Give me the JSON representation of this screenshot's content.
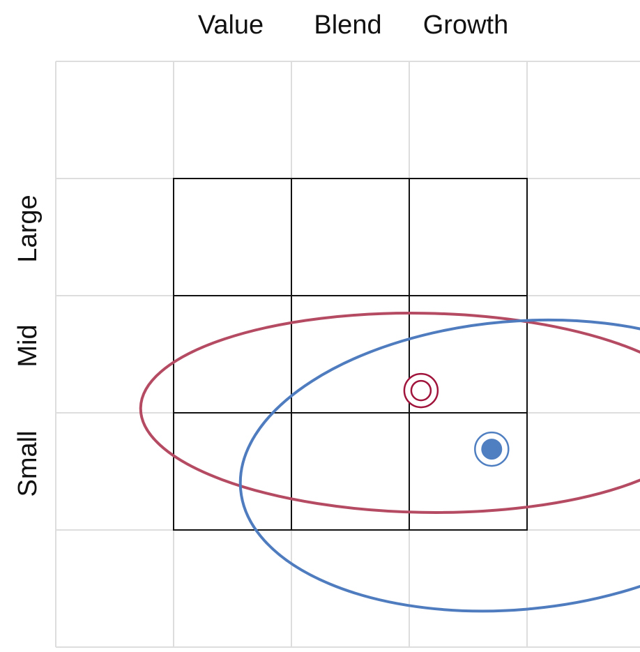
{
  "chart_data": {
    "type": "scatter",
    "title": "",
    "xlabel": "",
    "ylabel": "",
    "categories_x": [
      "Value",
      "Blend",
      "Growth"
    ],
    "categories_y": [
      "Large",
      "Mid",
      "Small"
    ],
    "xlim": [
      -1,
      4
    ],
    "ylim": [
      -1,
      4
    ],
    "grid": true,
    "points": [
      {
        "id": "fund",
        "x": 2.1,
        "y": 1.19,
        "style": "ring",
        "color": "#a0143c"
      },
      {
        "id": "benchmark",
        "x": 2.7,
        "y": 0.69,
        "style": "filled",
        "color": "#4f7fc1"
      }
    ],
    "ellipses": [
      {
        "id": "fund-range",
        "cx": 2.12,
        "cy": 1.0,
        "rx": 2.4,
        "ry": 0.85,
        "rotation": 1,
        "color": "#b54a63"
      },
      {
        "id": "benchmark-range",
        "cx": 2.9,
        "cy": 0.55,
        "rx": 2.34,
        "ry": 1.23,
        "rotation": -5,
        "color": "#4f7cbf"
      }
    ],
    "colors": {
      "grid": "#dddddd",
      "box": "#111111"
    }
  }
}
